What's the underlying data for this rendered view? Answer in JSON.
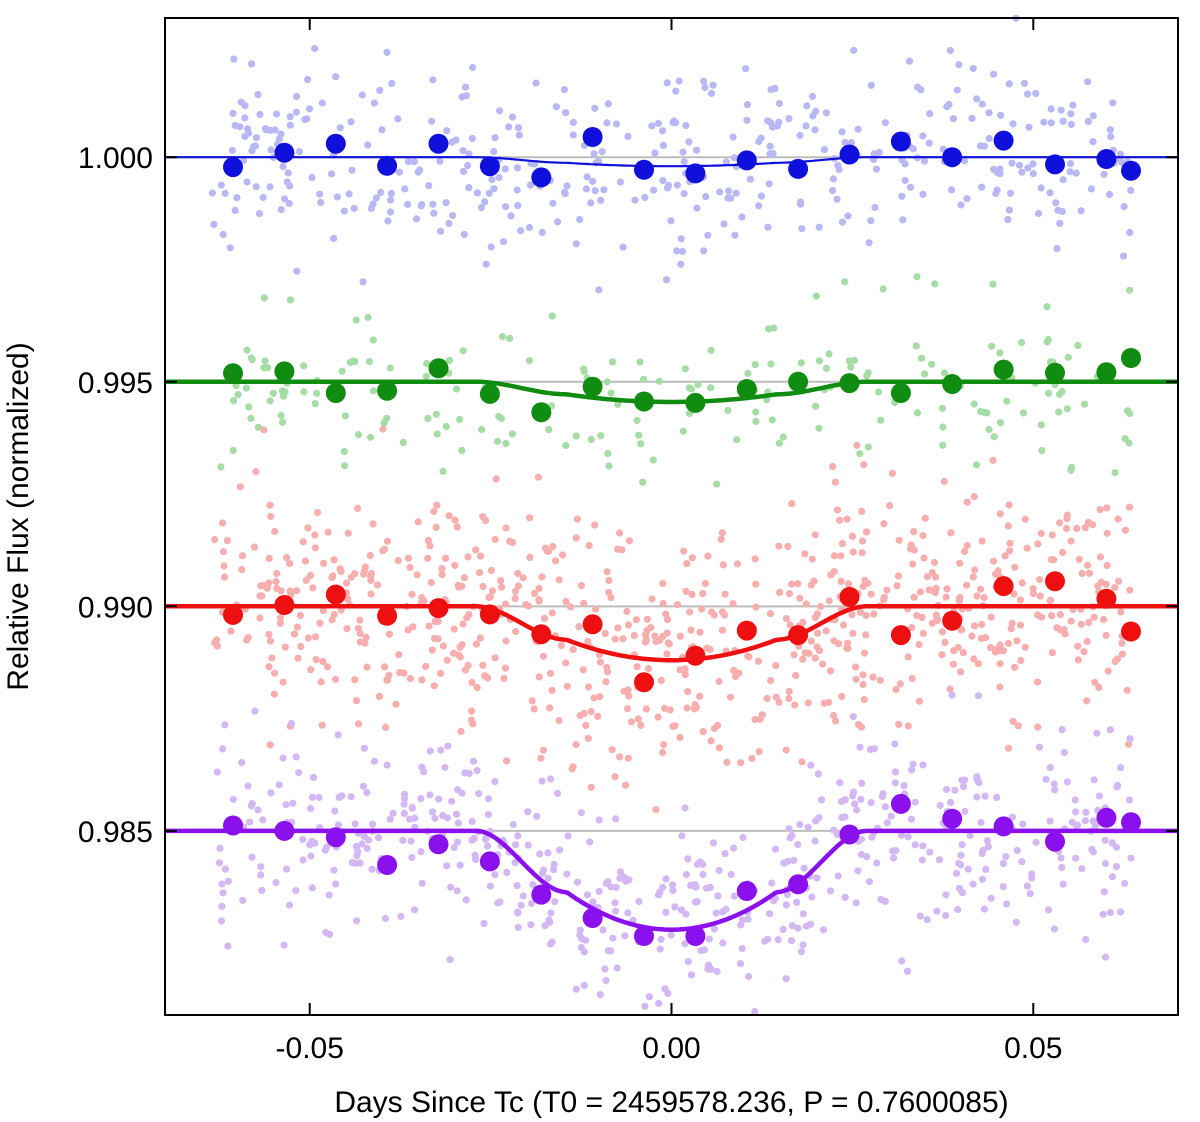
{
  "chart_data": {
    "type": "scatter",
    "title": "",
    "xlabel": "Days Since Tc (T0 = 2459578.236, P = 0.7600085)",
    "ylabel": "Relative Flux (normalized)",
    "xlim": [
      -0.07,
      0.07
    ],
    "ylim": [
      0.9809,
      1.0031
    ],
    "xticks": [
      -0.05,
      0.0,
      0.05
    ],
    "xtick_labels": [
      "-0.05",
      "0.00",
      "0.05"
    ],
    "yticks": [
      0.985,
      0.99,
      0.995,
      1.0
    ],
    "ytick_labels": [
      "0.985",
      "0.990",
      "0.995",
      "1.000"
    ],
    "grid": false,
    "legend": "none",
    "transit": {
      "t14": 0.054,
      "t12": 0.0125
    },
    "series": [
      {
        "baseline": 1.0,
        "depth": 0.0002,
        "color": "#1010dd",
        "light_color": "#b8b8f4",
        "n_raw": 420,
        "noise": 0.0011,
        "seed": 11,
        "binned_x": [
          -0.0606,
          -0.0535,
          -0.0464,
          -0.0393,
          -0.0322,
          -0.0251,
          -0.018,
          -0.0109,
          -0.0038,
          0.0033,
          0.0104,
          0.0175,
          0.0246,
          0.0317,
          0.0388,
          0.0459,
          0.053,
          0.0601,
          0.0635
        ],
        "binned_y": [
          0.99978,
          1.0001,
          1.0003,
          0.99981,
          1.0003,
          0.9998,
          0.99955,
          1.00045,
          0.99972,
          0.99964,
          0.99993,
          0.99974,
          1.00006,
          1.00035,
          1.0,
          1.00037,
          0.99984,
          0.99996,
          0.9997
        ]
      },
      {
        "baseline": 0.995,
        "depth": 0.00045,
        "color": "#108c10",
        "light_color": "#a6dca6",
        "n_raw": 200,
        "noise": 0.0009,
        "seed": 23,
        "binned_x": [
          -0.0606,
          -0.0535,
          -0.0464,
          -0.0393,
          -0.0322,
          -0.0251,
          -0.018,
          -0.0109,
          -0.0038,
          0.0033,
          0.0104,
          0.0175,
          0.0246,
          0.0317,
          0.0388,
          0.0459,
          0.053,
          0.0601,
          0.0635
        ],
        "binned_y": [
          0.99519,
          0.99523,
          0.99475,
          0.9948,
          0.9953,
          0.99473,
          0.99432,
          0.99489,
          0.99456,
          0.99453,
          0.99484,
          0.995,
          0.99497,
          0.99475,
          0.99495,
          0.99527,
          0.9952,
          0.99521,
          0.99553
        ]
      },
      {
        "baseline": 0.99,
        "depth": 0.0012,
        "color": "#ee1010",
        "light_color": "#f6aeae",
        "n_raw": 760,
        "noise": 0.0013,
        "seed": 37,
        "binned_x": [
          -0.0606,
          -0.0535,
          -0.0464,
          -0.0393,
          -0.0322,
          -0.0251,
          -0.018,
          -0.0109,
          -0.0038,
          0.0033,
          0.0104,
          0.0175,
          0.0246,
          0.0317,
          0.0388,
          0.0459,
          0.053,
          0.0601,
          0.0635
        ],
        "binned_y": [
          0.98981,
          0.99003,
          0.99026,
          0.98979,
          0.98996,
          0.98982,
          0.98938,
          0.9896,
          0.98831,
          0.9889,
          0.98946,
          0.98936,
          0.99021,
          0.98936,
          0.98968,
          0.99045,
          0.99056,
          0.99017,
          0.98944
        ]
      },
      {
        "baseline": 0.985,
        "depth": 0.0022,
        "color": "#8a10ee",
        "light_color": "#d4b8f4",
        "n_raw": 560,
        "noise": 0.0011,
        "seed": 53,
        "binned_x": [
          -0.0606,
          -0.0535,
          -0.0464,
          -0.0393,
          -0.0322,
          -0.0251,
          -0.018,
          -0.0109,
          -0.0038,
          0.0033,
          0.0104,
          0.0175,
          0.0246,
          0.0317,
          0.0388,
          0.0459,
          0.053,
          0.0601,
          0.0635
        ],
        "binned_y": [
          0.98512,
          0.985,
          0.98486,
          0.98424,
          0.9847,
          0.98432,
          0.98358,
          0.98306,
          0.98266,
          0.98266,
          0.98366,
          0.98381,
          0.98492,
          0.9856,
          0.98527,
          0.9851,
          0.98476,
          0.98529,
          0.98519
        ]
      }
    ]
  }
}
